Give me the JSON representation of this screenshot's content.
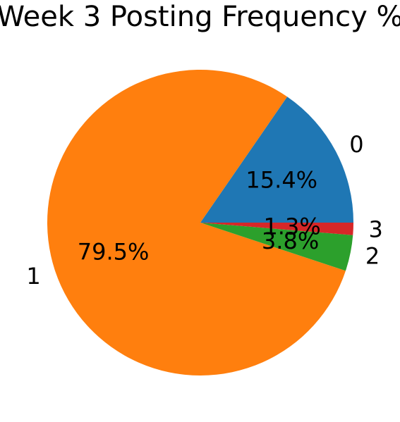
{
  "chart_data": {
    "type": "pie",
    "title": "Week 3 Posting Frequency %",
    "categories": [
      "0",
      "1",
      "2",
      "3"
    ],
    "values": [
      15.4,
      79.5,
      3.8,
      1.3
    ],
    "percent_labels": [
      "15.4%",
      "79.5%",
      "3.8%",
      "1.3%"
    ],
    "colors": [
      "#1f77b4",
      "#ff7f0e",
      "#2ca02c",
      "#d62728"
    ],
    "start_angle_deg": 0,
    "direction": "counterclockwise",
    "legend": "none"
  }
}
